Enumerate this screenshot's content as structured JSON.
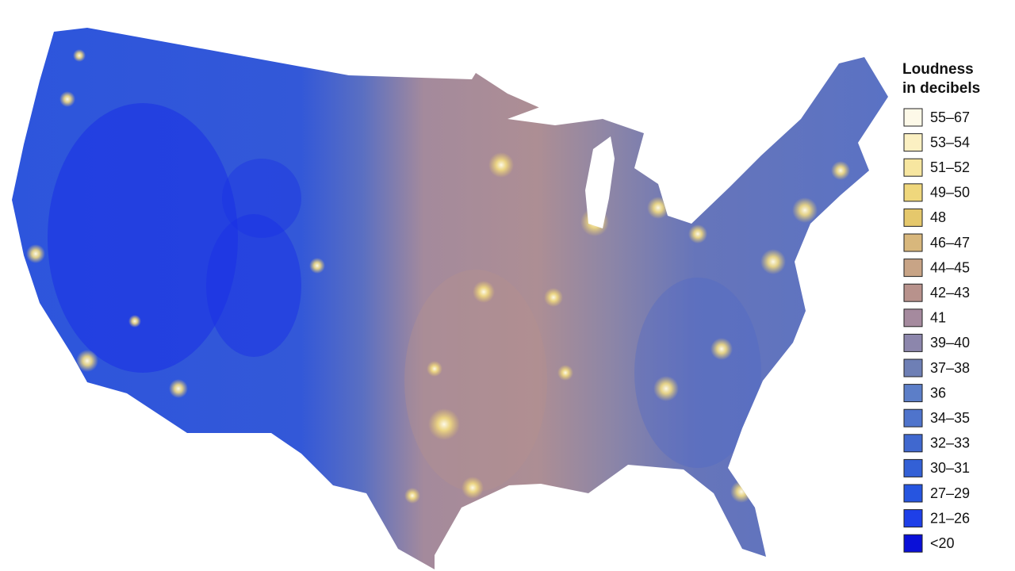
{
  "legend": {
    "title": [
      "Loudness",
      "in decibels"
    ],
    "items": [
      {
        "label": "55–67",
        "color": "#fdf9e8"
      },
      {
        "label": "53–54",
        "color": "#fbf0c2"
      },
      {
        "label": "51–52",
        "color": "#f7e6a0"
      },
      {
        "label": "49–50",
        "color": "#efd77c"
      },
      {
        "label": "48",
        "color": "#e5c86c"
      },
      {
        "label": "46–47",
        "color": "#d8b77c"
      },
      {
        "label": "44–45",
        "color": "#c8a486"
      },
      {
        "label": "42–43",
        "color": "#b8928c"
      },
      {
        "label": "41",
        "color": "#a58a9e"
      },
      {
        "label": "39–40",
        "color": "#8c86ac"
      },
      {
        "label": "37–38",
        "color": "#6e7fb5"
      },
      {
        "label": "36",
        "color": "#5c7ec8"
      },
      {
        "label": "34–35",
        "color": "#4f74cc"
      },
      {
        "label": "32–33",
        "color": "#4068cf"
      },
      {
        "label": "30–31",
        "color": "#3360d6"
      },
      {
        "label": "27–29",
        "color": "#2655e0"
      },
      {
        "label": "21–26",
        "color": "#1e3fe8"
      },
      {
        "label": "<20",
        "color": "#0a10d8"
      }
    ]
  }
}
